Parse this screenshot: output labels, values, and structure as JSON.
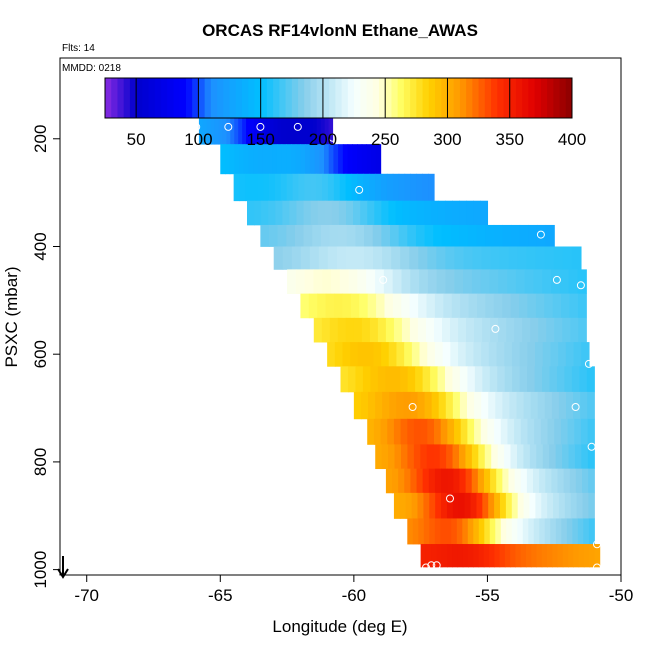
{
  "chart_data": {
    "type": "heatmap",
    "title": "ORCAS RF14vlonN Ethane_AWAS",
    "subtitle_flights": "Flts: 14",
    "subtitle_date": "MMDD: 0218",
    "xlabel": "Longitude (deg E)",
    "ylabel": "PSXC (mbar)",
    "xlim": [
      -71,
      -50
    ],
    "ylim": [
      1010,
      50
    ],
    "x_ticks": [
      -70,
      -65,
      -60,
      -55,
      -50
    ],
    "x_tick_labels": [
      "-70",
      "-65",
      "-60",
      "-55",
      "-50"
    ],
    "y_ticks": [
      200,
      400,
      600,
      800,
      1000
    ],
    "y_tick_labels": [
      "200",
      "400",
      "600",
      "800",
      "1000"
    ],
    "colorbar": {
      "range": [
        25,
        400
      ],
      "ticks": [
        50,
        100,
        150,
        200,
        250,
        300,
        350,
        400
      ],
      "tick_labels": [
        "50",
        "100",
        "150",
        "200",
        "250",
        "300",
        "350",
        "400"
      ],
      "stops": [
        {
          "v": 25,
          "c": "#8a2be2"
        },
        {
          "v": 50,
          "c": "#0000cd"
        },
        {
          "v": 90,
          "c": "#0000ff"
        },
        {
          "v": 110,
          "c": "#1e90ff"
        },
        {
          "v": 150,
          "c": "#00bfff"
        },
        {
          "v": 185,
          "c": "#87ceeb"
        },
        {
          "v": 225,
          "c": "#f5ffff"
        },
        {
          "v": 245,
          "c": "#ffffe0"
        },
        {
          "v": 262,
          "c": "#ffff66"
        },
        {
          "v": 285,
          "c": "#ffd000"
        },
        {
          "v": 310,
          "c": "#ff9a00"
        },
        {
          "v": 340,
          "c": "#ff3000"
        },
        {
          "v": 370,
          "c": "#e00000"
        },
        {
          "v": 400,
          "c": "#8b0000"
        }
      ]
    },
    "rows": [
      {
        "p": 180,
        "x0": -65.8,
        "x1": -60.8,
        "v0": 130,
        "v1": 40,
        "pk": 0.5,
        "pkx": -62.5,
        "pv": 45
      },
      {
        "p": 240,
        "x0": -65.0,
        "x1": -59.0,
        "v0": 150,
        "v1": 70,
        "pk": 0.5,
        "pkx": -62.5,
        "pv": 140
      },
      {
        "p": 290,
        "x0": -64.5,
        "x1": -57.0,
        "v0": 155,
        "v1": 110,
        "pk": 0.5,
        "pkx": -61.5,
        "pv": 175
      },
      {
        "p": 340,
        "x0": -64.0,
        "x1": -55.0,
        "v0": 160,
        "v1": 130,
        "pk": 0.5,
        "pkx": -61.0,
        "pv": 195
      },
      {
        "p": 380,
        "x0": -63.5,
        "x1": -52.5,
        "v0": 170,
        "v1": 130,
        "pk": 0.5,
        "pkx": -60.5,
        "pv": 205
      },
      {
        "p": 420,
        "x0": -63.0,
        "x1": -51.5,
        "v0": 180,
        "v1": 160,
        "pk": 0.5,
        "pkx": -60.0,
        "pv": 215
      },
      {
        "p": 465,
        "x0": -62.5,
        "x1": -51.3,
        "v0": 210,
        "v1": 160,
        "pk": 0.6,
        "pkx": -61.0,
        "pv": 255
      },
      {
        "p": 510,
        "x0": -62.0,
        "x1": -51.3,
        "v0": 240,
        "v1": 165,
        "pk": 0.6,
        "pkx": -60.5,
        "pv": 275
      },
      {
        "p": 555,
        "x0": -61.5,
        "x1": -51.3,
        "v0": 250,
        "v1": 170,
        "pk": 0.6,
        "pkx": -60.0,
        "pv": 290
      },
      {
        "p": 600,
        "x0": -61.0,
        "x1": -51.2,
        "v0": 255,
        "v1": 165,
        "pk": 0.6,
        "pkx": -59.5,
        "pv": 300
      },
      {
        "p": 645,
        "x0": -60.5,
        "x1": -51.0,
        "v0": 260,
        "v1": 160,
        "pk": 0.6,
        "pkx": -58.5,
        "pv": 305
      },
      {
        "p": 695,
        "x0": -60.0,
        "x1": -51.0,
        "v0": 270,
        "v1": 170,
        "pk": 0.6,
        "pkx": -58.0,
        "pv": 320
      },
      {
        "p": 745,
        "x0": -59.5,
        "x1": -51.0,
        "v0": 280,
        "v1": 165,
        "pk": 0.6,
        "pkx": -57.5,
        "pv": 345
      },
      {
        "p": 790,
        "x0": -59.2,
        "x1": -51.0,
        "v0": 290,
        "v1": 160,
        "pk": 0.6,
        "pkx": -57.0,
        "pv": 355
      },
      {
        "p": 835,
        "x0": -58.8,
        "x1": -51.0,
        "v0": 295,
        "v1": 175,
        "pk": 0.6,
        "pkx": -56.5,
        "pv": 375
      },
      {
        "p": 880,
        "x0": -58.5,
        "x1": -51.0,
        "v0": 295,
        "v1": 180,
        "pk": 0.6,
        "pkx": -56.0,
        "pv": 380
      },
      {
        "p": 930,
        "x0": -58.0,
        "x1": -51.0,
        "v0": 300,
        "v1": 165,
        "pk": 0.55,
        "pkx": -56.5,
        "pv": 345
      },
      {
        "p": 975,
        "x0": -57.5,
        "x1": -50.8,
        "v0": 345,
        "v1": 305,
        "pk": 0.4,
        "pkx": -56.0,
        "pv": 360
      }
    ],
    "markers": [
      {
        "lon": -65.9,
        "p": 178
      },
      {
        "lon": -64.7,
        "p": 178
      },
      {
        "lon": -63.5,
        "p": 178
      },
      {
        "lon": -62.1,
        "p": 178
      },
      {
        "lon": -60.8,
        "p": 198
      },
      {
        "lon": -59.8,
        "p": 295
      },
      {
        "lon": -53.0,
        "p": 378
      },
      {
        "lon": -58.9,
        "p": 462
      },
      {
        "lon": -52.4,
        "p": 462
      },
      {
        "lon": -51.5,
        "p": 472
      },
      {
        "lon": -54.7,
        "p": 553
      },
      {
        "lon": -51.2,
        "p": 618
      },
      {
        "lon": -57.8,
        "p": 698
      },
      {
        "lon": -51.7,
        "p": 698
      },
      {
        "lon": -51.1,
        "p": 772
      },
      {
        "lon": -56.4,
        "p": 868
      },
      {
        "lon": -50.9,
        "p": 953
      },
      {
        "lon": -57.1,
        "p": 992
      },
      {
        "lon": -57.3,
        "p": 996
      },
      {
        "lon": -56.9,
        "p": 992
      },
      {
        "lon": -50.9,
        "p": 996
      }
    ],
    "arrow_note": "downward arrow at lower-left corner of plot"
  }
}
